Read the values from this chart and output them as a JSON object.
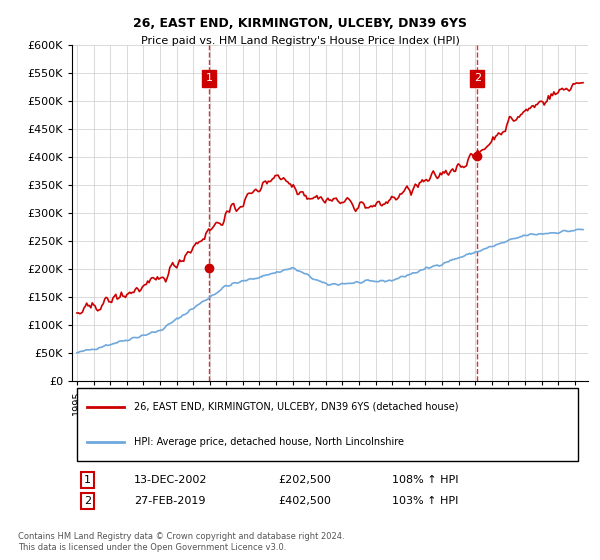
{
  "title": "26, EAST END, KIRMINGTON, ULCEBY, DN39 6YS",
  "subtitle": "Price paid vs. HM Land Registry's House Price Index (HPI)",
  "sale1_date": "13-DEC-2002",
  "sale1_price": 202500,
  "sale1_label": "108% ↑ HPI",
  "sale2_date": "27-FEB-2019",
  "sale2_price": 402500,
  "sale2_label": "103% ↑ HPI",
  "legend_line1": "26, EAST END, KIRMINGTON, ULCEBY, DN39 6YS (detached house)",
  "legend_line2": "HPI: Average price, detached house, North Lincolnshire",
  "footer": "Contains HM Land Registry data © Crown copyright and database right 2024.\nThis data is licensed under the Open Government Licence v3.0.",
  "hpi_color": "#6fa8dc",
  "price_color": "#cc0000",
  "dashed_color": "#cc0000",
  "ylim": [
    0,
    600000
  ],
  "yticks": [
    0,
    50000,
    100000,
    150000,
    200000,
    250000,
    300000,
    350000,
    400000,
    450000,
    500000,
    550000,
    600000
  ],
  "xlim_start": 1995.0,
  "xlim_end": 2025.5,
  "background": "#ffffff",
  "grid_color": "#cccccc"
}
